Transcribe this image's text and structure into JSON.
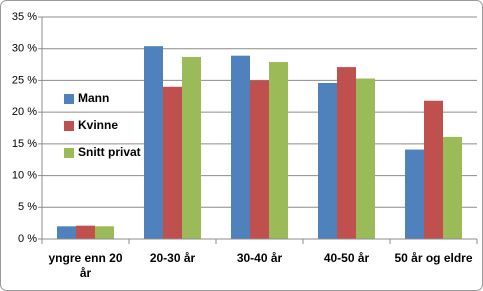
{
  "chart_data": {
    "type": "bar",
    "categories": [
      "yngre enn 20 år",
      "20-30 år",
      "30-40 år",
      "40-50 år",
      "50 år og eldre"
    ],
    "series": [
      {
        "name": "Mann",
        "color": "#4f81bd",
        "values": [
          2.0,
          30.4,
          28.9,
          24.6,
          14.1
        ]
      },
      {
        "name": "Kvinne",
        "color": "#c0504d",
        "values": [
          2.1,
          24.0,
          25.0,
          27.1,
          21.8
        ]
      },
      {
        "name": "Snitt privat",
        "color": "#9bbb59",
        "values": [
          2.0,
          28.7,
          27.9,
          25.3,
          16.1
        ]
      }
    ],
    "ylim": [
      0,
      35
    ],
    "yticks": [
      {
        "value": 0,
        "label": "0 %"
      },
      {
        "value": 5,
        "label": "5 %"
      },
      {
        "value": 10,
        "label": "10 %"
      },
      {
        "value": 15,
        "label": "15 %"
      },
      {
        "value": 20,
        "label": "20 %"
      },
      {
        "value": 25,
        "label": "25 %"
      },
      {
        "value": 30,
        "label": "30 %"
      },
      {
        "value": 35,
        "label": "35 %"
      }
    ],
    "grid": true,
    "legend": "left"
  }
}
